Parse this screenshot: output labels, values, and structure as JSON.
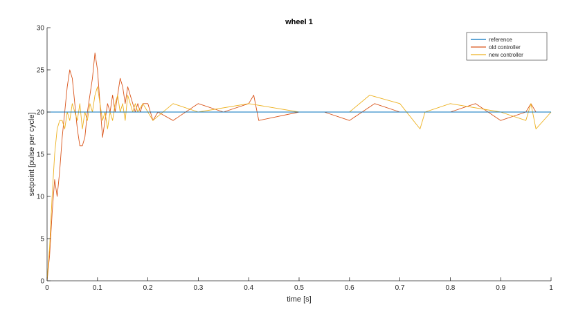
{
  "chart_data": {
    "type": "line",
    "title": "wheel 1",
    "xlabel": "time [s]",
    "ylabel": "setpoint [pulse per cycle]",
    "xlim": [
      0,
      1
    ],
    "ylim": [
      0,
      30
    ],
    "x_ticks": [
      "0",
      "0.1",
      "0.2",
      "0.3",
      "0.4",
      "0.5",
      "0.6",
      "0.7",
      "0.8",
      "0.9",
      "1"
    ],
    "y_ticks": [
      "0",
      "5",
      "10",
      "15",
      "20",
      "25",
      "30"
    ],
    "grid": false,
    "legend_position": "top-right",
    "series": [
      {
        "name": "reference",
        "color": "#0072BD",
        "x": [
          0,
          1
        ],
        "y": [
          20,
          20
        ]
      },
      {
        "name": "old controller",
        "color": "#D95319",
        "x": [
          0,
          0.005,
          0.01,
          0.015,
          0.02,
          0.025,
          0.03,
          0.035,
          0.04,
          0.045,
          0.05,
          0.055,
          0.06,
          0.065,
          0.07,
          0.075,
          0.08,
          0.085,
          0.09,
          0.095,
          0.1,
          0.105,
          0.11,
          0.115,
          0.12,
          0.125,
          0.13,
          0.135,
          0.14,
          0.145,
          0.15,
          0.155,
          0.16,
          0.165,
          0.17,
          0.175,
          0.18,
          0.185,
          0.19,
          0.2,
          0.21,
          0.22,
          0.25,
          0.3,
          0.35,
          0.4,
          0.41,
          0.42,
          0.5,
          0.55,
          0.6,
          0.65,
          0.7,
          0.75,
          0.8,
          0.85,
          0.9,
          0.95,
          0.96,
          0.97,
          1
        ],
        "y": [
          0,
          3,
          8,
          12,
          10,
          13,
          17,
          20,
          23,
          25,
          24,
          21,
          18,
          16,
          16,
          17,
          20,
          22,
          24,
          27,
          25,
          21,
          17,
          19,
          21,
          20,
          22,
          20,
          22,
          24,
          23,
          21,
          23,
          22,
          21,
          20,
          21,
          20,
          21,
          21,
          19,
          20,
          19,
          21,
          20,
          21,
          22,
          19,
          20,
          20,
          19,
          21,
          20,
          20,
          20,
          21,
          19,
          20,
          21,
          20,
          20
        ]
      },
      {
        "name": "new controller",
        "color": "#EDB120",
        "x": [
          0,
          0.005,
          0.01,
          0.015,
          0.02,
          0.025,
          0.03,
          0.035,
          0.04,
          0.045,
          0.05,
          0.055,
          0.06,
          0.065,
          0.07,
          0.075,
          0.08,
          0.085,
          0.09,
          0.095,
          0.1,
          0.105,
          0.11,
          0.115,
          0.12,
          0.125,
          0.13,
          0.135,
          0.14,
          0.145,
          0.15,
          0.155,
          0.16,
          0.165,
          0.17,
          0.175,
          0.18,
          0.19,
          0.2,
          0.21,
          0.25,
          0.3,
          0.4,
          0.5,
          0.6,
          0.64,
          0.7,
          0.74,
          0.75,
          0.8,
          0.9,
          0.95,
          0.96,
          0.97,
          1
        ],
        "y": [
          0,
          4,
          10,
          15,
          18,
          19,
          19,
          18,
          20,
          19,
          21,
          20,
          19,
          21,
          18,
          20,
          19,
          21,
          20,
          22,
          23,
          21,
          19,
          20,
          18,
          20,
          19,
          21,
          22,
          20,
          21,
          19,
          22,
          21,
          20,
          21,
          20,
          21,
          20,
          19,
          21,
          20,
          21,
          20,
          20,
          22,
          21,
          18,
          20,
          21,
          20,
          19,
          21,
          18,
          20
        ]
      }
    ]
  }
}
